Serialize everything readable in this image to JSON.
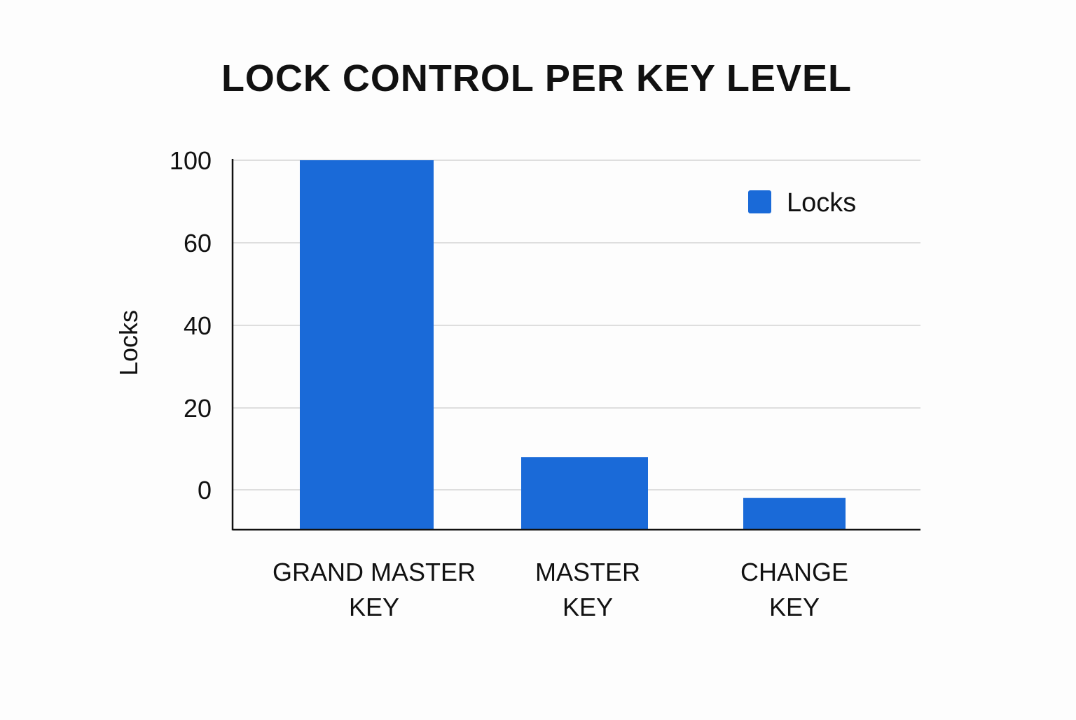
{
  "chart_data": {
    "type": "bar",
    "title": "LOCK CONTROL PER KEY LEVEL",
    "xlabel": "",
    "ylabel": "Locks",
    "categories": [
      [
        "GRAND MASTER",
        "KEY"
      ],
      [
        "MASTER",
        "KEY"
      ],
      [
        "CHANGE",
        "KEY"
      ]
    ],
    "series": [
      {
        "name": "Locks",
        "values": [
          100,
          8,
          -5
        ],
        "color": "#1a6ad8"
      }
    ],
    "y_ticks": [
      {
        "value": 100,
        "label": "100"
      },
      {
        "value": 60,
        "label": "60"
      },
      {
        "value": 40,
        "label": "40"
      },
      {
        "value": 20,
        "label": "20"
      },
      {
        "value": 0,
        "label": "0"
      }
    ],
    "ylim": [
      -10,
      100
    ],
    "grid": true,
    "legend_position": "top-right"
  }
}
